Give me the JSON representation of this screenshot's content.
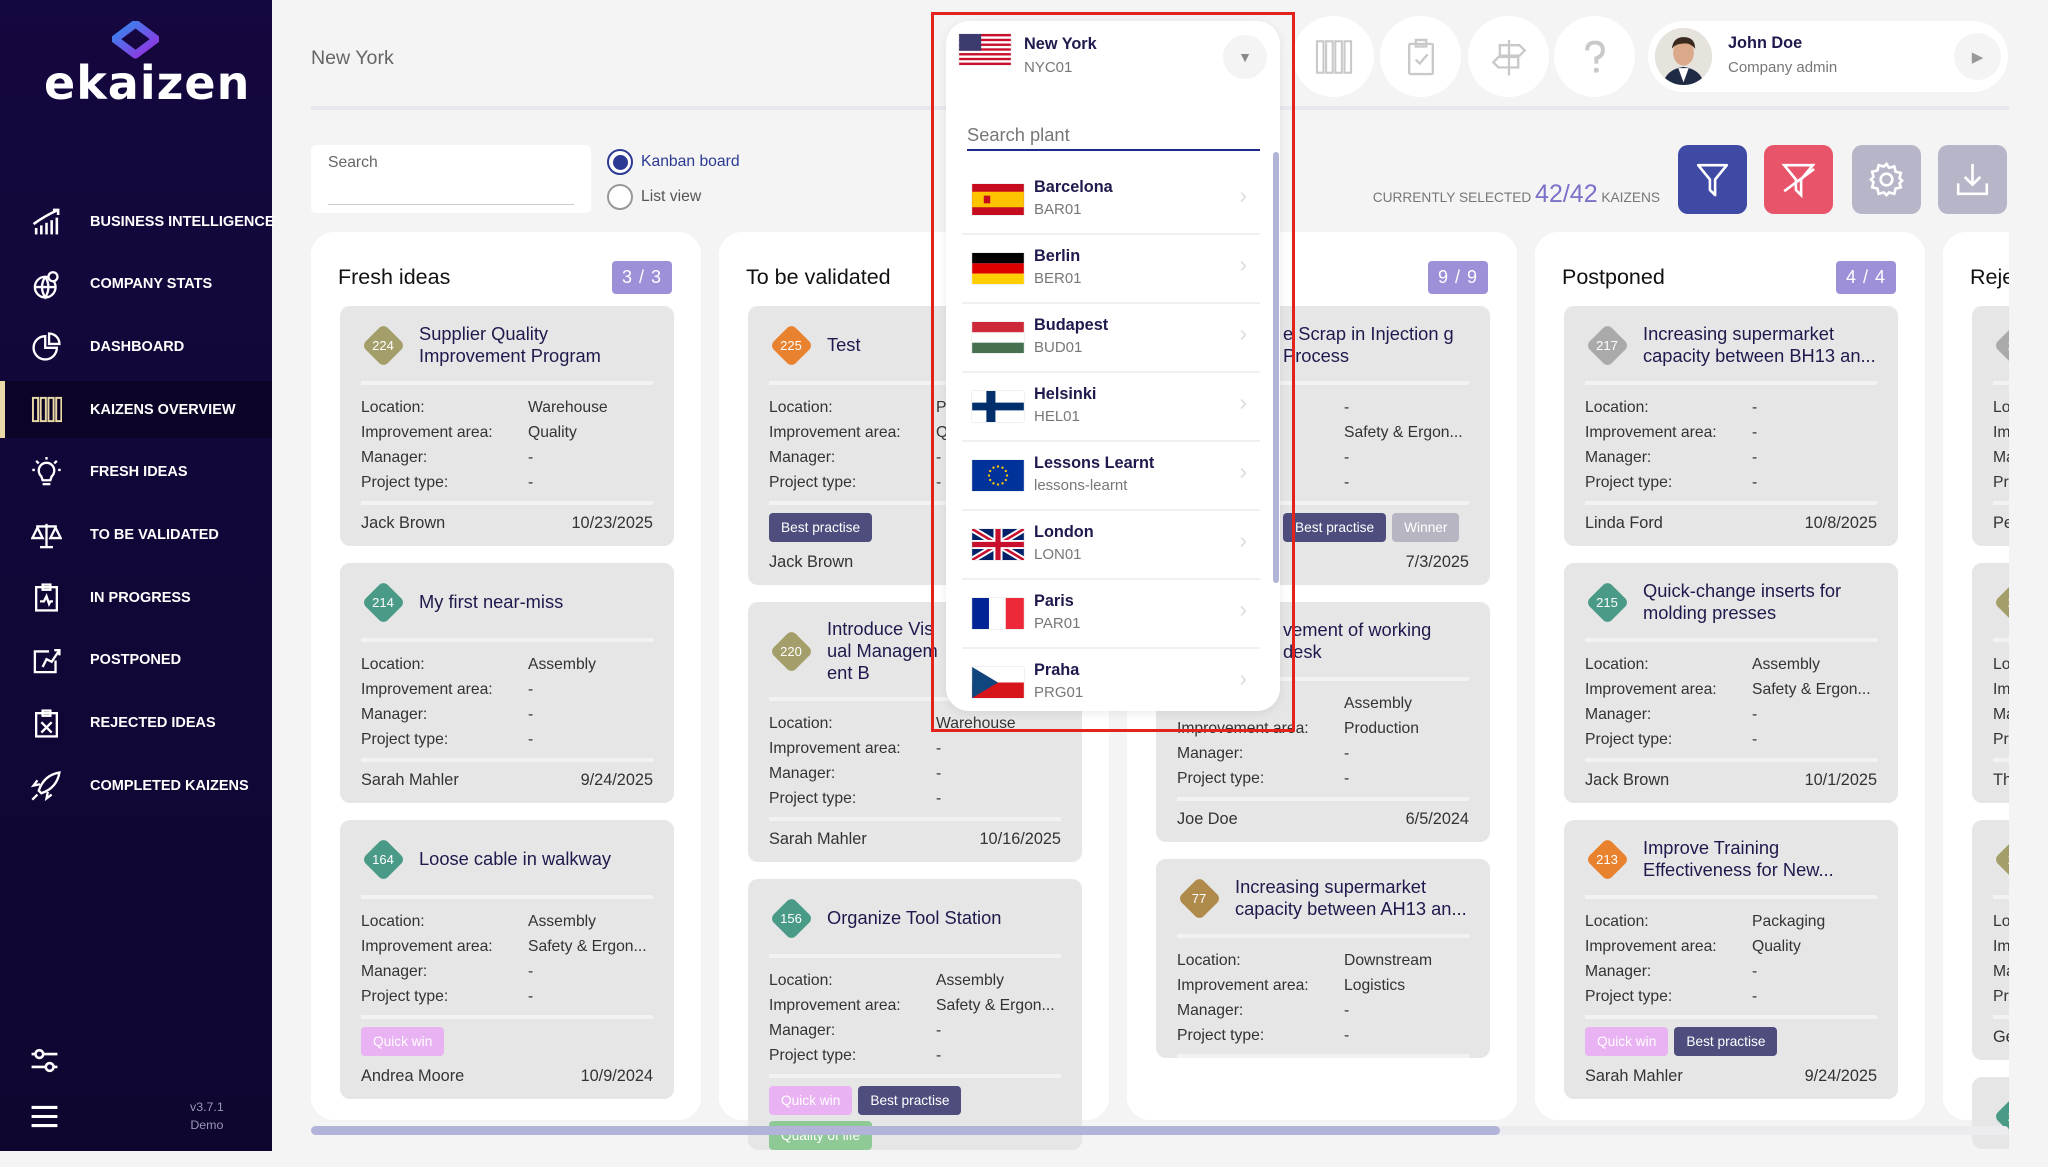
{
  "app": {
    "logo_text": "ekaizen",
    "version": "v3.7.1",
    "edition": "Demo"
  },
  "sidebar": {
    "items": [
      {
        "label": "BUSINESS INTELLIGENCE",
        "icon": "chart-growth-icon"
      },
      {
        "label": "COMPANY STATS",
        "icon": "globe-pin-icon"
      },
      {
        "label": "DASHBOARD",
        "icon": "pie-chart-icon"
      },
      {
        "label": "KAIZENS OVERVIEW",
        "icon": "kanban-columns-icon",
        "active": true
      },
      {
        "label": "FRESH IDEAS",
        "icon": "lightbulb-icon"
      },
      {
        "label": "TO BE VALIDATED",
        "icon": "scales-icon"
      },
      {
        "label": "IN PROGRESS",
        "icon": "clipboard-pulse-icon"
      },
      {
        "label": "POSTPONED",
        "icon": "postpone-icon"
      },
      {
        "label": "REJECTED IDEAS",
        "icon": "clipboard-x-icon"
      },
      {
        "label": "COMPLETED KAIZENS",
        "icon": "rocket-icon"
      }
    ]
  },
  "header": {
    "location_title": "New York",
    "user": {
      "name": "John Doe",
      "role": "Company admin"
    }
  },
  "toolbar": {
    "search_label": "Search",
    "search_value": "",
    "view_options": [
      {
        "label": "Kanban board",
        "selected": true
      },
      {
        "label": "List view",
        "selected": false
      }
    ],
    "selected_prefix": "CURRENTLY SELECTED",
    "selected_count": "42/42",
    "selected_suffix": "KAIZENS",
    "colors": {
      "filter": "#3f4aa5",
      "clear_filter": "#e8556b",
      "settings": "#b7b6c9",
      "download": "#b7b6c9"
    }
  },
  "plant_dropdown": {
    "current": {
      "name": "New York",
      "code": "NYC01",
      "flag": "us"
    },
    "search_placeholder": "Search plant",
    "plants": [
      {
        "name": "Barcelona",
        "code": "BAR01",
        "flag": "es"
      },
      {
        "name": "Berlin",
        "code": "BER01",
        "flag": "de"
      },
      {
        "name": "Budapest",
        "code": "BUD01",
        "flag": "hu"
      },
      {
        "name": "Helsinki",
        "code": "HEL01",
        "flag": "fi"
      },
      {
        "name": "Lessons Learnt",
        "code": "lessons-learnt",
        "flag": "eu"
      },
      {
        "name": "London",
        "code": "LON01",
        "flag": "gb"
      },
      {
        "name": "Paris",
        "code": "PAR01",
        "flag": "fr"
      },
      {
        "name": "Praha",
        "code": "PRG01",
        "flag": "cz"
      }
    ]
  },
  "card_labels": [
    "Location:",
    "Improvement area:",
    "Manager:",
    "Project type:"
  ],
  "tag_colors": {
    "Quick win": "#e9b2f3",
    "Best practise": "#4e4d7e",
    "Winner": "#b8b5c2",
    "Quality of life": "#8fc996"
  },
  "columns": [
    {
      "title": "Fresh ideas",
      "count": "3 / 3",
      "cards": [
        {
          "id": "224",
          "color": "#a39e6a",
          "title": "Supplier Quality Improvement Program",
          "values": [
            "Warehouse",
            "Quality",
            "-",
            "-"
          ],
          "tags": [],
          "author": "Jack Brown",
          "date": "10/23/2025"
        },
        {
          "id": "214",
          "color": "#4a9a88",
          "title": "My first near-miss",
          "values": [
            "Assembly",
            "-",
            "-",
            "-"
          ],
          "tags": [],
          "author": "Sarah Mahler",
          "date": "9/24/2025"
        },
        {
          "id": "164",
          "color": "#4a9a88",
          "title": "Loose cable in walkway",
          "values": [
            "Assembly",
            "Safety & Ergon...",
            "-",
            "-"
          ],
          "tags": [
            "Quick win"
          ],
          "author": "Andrea Moore",
          "date": "10/9/2024"
        }
      ]
    },
    {
      "title": "To be validated",
      "count": "",
      "cards": [
        {
          "id": "225",
          "color": "#e9822e",
          "title": "Test",
          "values": [
            "P",
            "Q",
            "-",
            "-"
          ],
          "tags": [
            "Best practise"
          ],
          "author": "Jack Brown",
          "date": ""
        },
        {
          "id": "220",
          "color": "#a39e6a",
          "title": "Introduce Visual Management B",
          "values": [
            "Warehouse",
            "-",
            "-",
            "-"
          ],
          "tags": [],
          "author": "Sarah Mahler",
          "date": "10/16/2025"
        },
        {
          "id": "156",
          "color": "#4a9a88",
          "title": "Organize Tool Station",
          "values": [
            "Assembly",
            "Safety & Ergon...",
            "-",
            "-"
          ],
          "tags": [
            "Quick win",
            "Best practise",
            "Quality of life"
          ],
          "author": "",
          "date": ""
        }
      ]
    },
    {
      "title": "",
      "count": "9 / 9",
      "cards": [
        {
          "id": "",
          "color": "#a39e6a",
          "title": "e Scrap in Injection g Process",
          "values": [
            "-",
            "Safety & Ergon...",
            "-",
            "-"
          ],
          "tags": [
            "Best practise",
            "Winner"
          ],
          "author": "",
          "date": "7/3/2025"
        },
        {
          "id": "",
          "color": "#4a9a88",
          "title": "vement of working desk",
          "values": [
            "Assembly",
            "Production",
            "-",
            "-"
          ],
          "tags": [],
          "author": "Joe Doe",
          "date": "6/5/2024"
        },
        {
          "id": "77",
          "color": "#b08a4a",
          "title": "Increasing supermarket capacity between AH13 an...",
          "values": [
            "Downstream",
            "Logistics",
            "-",
            "-"
          ],
          "tags": [],
          "author": "",
          "date": ""
        }
      ]
    },
    {
      "title": "Postponed",
      "count": "4 / 4",
      "cards": [
        {
          "id": "217",
          "color": "#aaaaaa",
          "title": "Increasing supermarket capacity between BH13 an...",
          "values": [
            "-",
            "-",
            "-",
            "-"
          ],
          "tags": [],
          "author": "Linda Ford",
          "date": "10/8/2025"
        },
        {
          "id": "215",
          "color": "#4a9a88",
          "title": "Quick-change inserts for molding presses",
          "values": [
            "Assembly",
            "Safety & Ergon...",
            "-",
            "-"
          ],
          "tags": [],
          "author": "Jack Brown",
          "date": "10/1/2025"
        },
        {
          "id": "213",
          "color": "#e9822e",
          "title": "Improve Training Effectiveness for New...",
          "values": [
            "Packaging",
            "Quality",
            "-",
            "-"
          ],
          "tags": [
            "Quick win",
            "Best practise"
          ],
          "author": "Sarah Mahler",
          "date": "9/24/2025"
        }
      ]
    },
    {
      "title": "Reje",
      "count": "",
      "cards": [
        {
          "id": "22",
          "color": "#aaaaaa",
          "title": "",
          "values": [
            "",
            "",
            "",
            ""
          ],
          "tags": [],
          "author": "Pe",
          "date": ""
        },
        {
          "id": "22",
          "color": "#a39e6a",
          "title": "",
          "values": [
            "",
            "",
            "",
            ""
          ],
          "tags": [],
          "author": "Th",
          "date": ""
        },
        {
          "id": "22",
          "color": "#a39e6a",
          "title": "",
          "values": [
            "",
            "",
            "",
            ""
          ],
          "tags": [],
          "author": "Ge",
          "date": ""
        },
        {
          "id": "21",
          "color": "#4a9a88",
          "title": "",
          "values": [
            "",
            "",
            "",
            ""
          ],
          "tags": [],
          "author": "",
          "date": ""
        }
      ]
    }
  ]
}
